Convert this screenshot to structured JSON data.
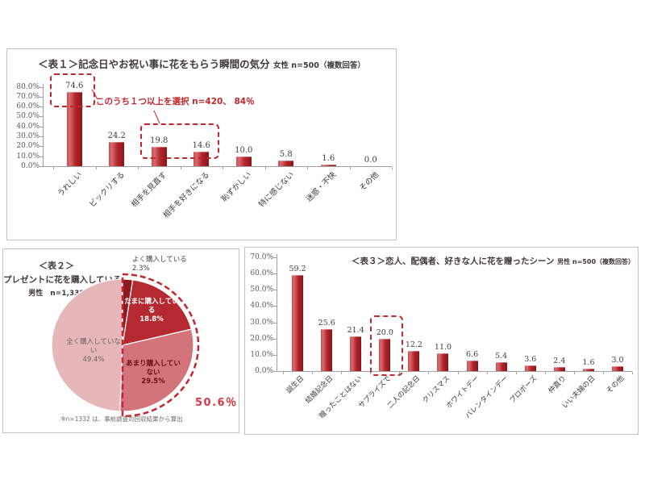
{
  "colors": {
    "bar_red": "#b2262a",
    "accent_red": "#c3272e",
    "title_text": "#3f3a39",
    "axis_line": "#9f9f9f",
    "box_border": "#c3c3c3"
  },
  "chart_data": [
    {
      "type": "bar",
      "title": "＜表１＞記念日やお祝い事に花をもらう瞬間の気分",
      "title_suffix": "女性 n=500（複数回答）",
      "categories": [
        "うれしい",
        "ビックリする",
        "相手を見直す",
        "相手を好きになる",
        "恥ずかしい",
        "特に感じない",
        "迷惑・不快",
        "その他"
      ],
      "values": [
        74.6,
        24.2,
        19.8,
        14.6,
        10.0,
        5.8,
        1.6,
        0.0
      ],
      "ylabel_format": "percent",
      "ylim": [
        0,
        80
      ],
      "ytick_step": 10,
      "grid": false,
      "legend": false,
      "annotation": "このうち１つ以上を選択 n=420、 84％",
      "highlighted_bars": [
        0,
        2,
        3
      ]
    },
    {
      "type": "pie",
      "title_tag": "＜表２＞",
      "title": "プレゼントに花を購入している",
      "subtitle": "男性　n=1,332",
      "slices": [
        {
          "label": "よく購入している",
          "value": 2.3,
          "color": "#8e191e"
        },
        {
          "label": "たまに購入している",
          "value": 18.8,
          "color": "#b52a30"
        },
        {
          "label": "あまり購入していない",
          "value": 29.5,
          "color": "#d3747a"
        },
        {
          "label": "全く購入していない",
          "value": 49.4,
          "color": "#e7b6ba"
        }
      ],
      "callout": "50.6％",
      "footnote": "※n=1332 は、事前調査の回収結果から算出"
    },
    {
      "type": "bar",
      "title": "＜表３＞恋人、配偶者、好きな人に花を贈ったシーン",
      "title_suffix": "男性 n=500（複数回答）",
      "categories": [
        "誕生日",
        "結婚記念日",
        "贈ったことはない",
        "サプライズで",
        "二人の記念日",
        "クリスマス",
        "ホワイトデー",
        "バレンタインデー",
        "プロポーズ",
        "仲直り",
        "いい夫婦の日",
        "その他"
      ],
      "values": [
        59.2,
        25.6,
        21.4,
        20.0,
        12.2,
        11.0,
        6.6,
        5.4,
        3.6,
        2.4,
        1.6,
        3.0
      ],
      "ylabel_format": "percent",
      "ylim": [
        0,
        70
      ],
      "ytick_step": 10,
      "grid": false,
      "legend": false,
      "highlighted_bars": [
        3
      ]
    }
  ]
}
